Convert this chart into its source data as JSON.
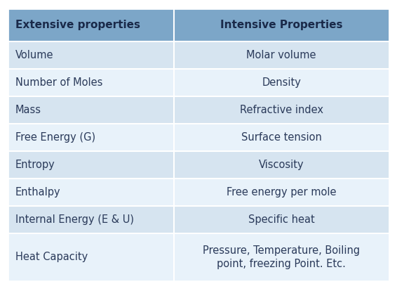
{
  "col1_header": "Extensive properties",
  "col2_header": "Intensive Properties",
  "rows": [
    [
      "Volume",
      "Molar volume"
    ],
    [
      "Number of Moles",
      "Density"
    ],
    [
      "Mass",
      "Refractive index"
    ],
    [
      "Free Energy (G)",
      "Surface tension"
    ],
    [
      "Entropy",
      "Viscosity"
    ],
    [
      "Enthalpy",
      "Free energy per mole"
    ],
    [
      "Internal Energy (E & U)",
      "Specific heat"
    ],
    [
      "Heat Capacity",
      "Pressure, Temperature, Boiling\npoint, freezing Point. Etc."
    ]
  ],
  "header_bg": "#7CA6C8",
  "row_odd_bg": "#D6E4F0",
  "row_even_bg": "#E8F2FA",
  "header_text_color": "#1a2a4a",
  "row_text_color": "#2a3a5a",
  "border_color": "#ffffff",
  "fig_bg": "#ffffff",
  "header_fontsize": 11,
  "row_fontsize": 10.5,
  "figwidth": 5.66,
  "figheight": 4.04,
  "dpi": 100
}
